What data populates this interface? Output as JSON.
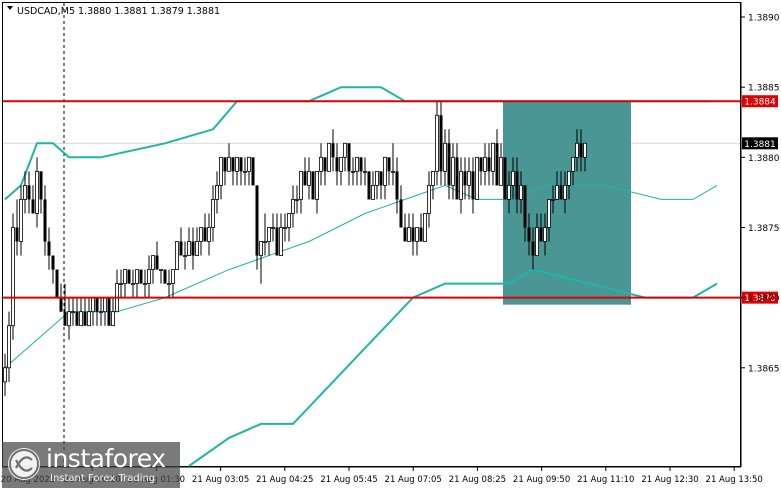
{
  "header": {
    "symbol_label": "USDCAD,M5  1.3880 1.3881 1.3879 1.3881"
  },
  "watermark": {
    "brand": "instaforex",
    "subtitle": "Instant Forex Trading"
  },
  "colors": {
    "background": "#ffffff",
    "candle": "#000000",
    "bollinger": "#1fb5a8",
    "level_line": "#e00000",
    "level_label_bg": "#e00000",
    "highlight_box": "#4a9694",
    "grid": "#d9d9d9"
  },
  "chart_data": {
    "type": "candlestick",
    "ylim": [
      1.3858,
      1.3891
    ],
    "y_ticks": [
      "1.3890",
      "1.3885",
      "1.3880",
      "1.3875",
      "1.3870",
      "1.3865"
    ],
    "x_tick_labels": [
      "20 Aug 2022",
      "21 Aug 00:10",
      "21 Aug 01:30",
      "21 Aug 03:05",
      "21 Aug 04:25",
      "21 Aug 05:45",
      "21 Aug 07:05",
      "21 Aug 08:25",
      "21 Aug 09:50",
      "21 Aug 11:10",
      "21 Aug 12:30",
      "21 Aug 13:50"
    ],
    "price_levels": [
      {
        "label": "1.3884",
        "value": 1.3884
      },
      {
        "label": "1.3870",
        "value": 1.387
      }
    ],
    "current_price": {
      "label": "1.3881",
      "value": 1.3881
    },
    "highlight_zone": {
      "from_bar": 125,
      "to_bar": 156,
      "top": 1.3884,
      "bottom": 1.38695
    },
    "session_separator_bar": 15,
    "candles": [
      [
        1.3864,
        1.3866,
        1.3863,
        1.3865
      ],
      [
        1.3865,
        1.3869,
        1.3864,
        1.3868
      ],
      [
        1.3868,
        1.3876,
        1.3867,
        1.3875
      ],
      [
        1.3875,
        1.3877,
        1.3873,
        1.3874
      ],
      [
        1.3874,
        1.3878,
        1.3873,
        1.3877
      ],
      [
        1.3877,
        1.3879,
        1.3876,
        1.3878
      ],
      [
        1.3878,
        1.3879,
        1.3876,
        1.3877
      ],
      [
        1.3877,
        1.3878,
        1.3876,
        1.3876
      ],
      [
        1.3876,
        1.388,
        1.3875,
        1.3879
      ],
      [
        1.3879,
        1.3879,
        1.3876,
        1.3877
      ],
      [
        1.3877,
        1.3878,
        1.3873,
        1.3874
      ],
      [
        1.3874,
        1.3875,
        1.3872,
        1.3873
      ],
      [
        1.3873,
        1.3873,
        1.3871,
        1.3872
      ],
      [
        1.3872,
        1.3872,
        1.387,
        1.387
      ],
      [
        1.387,
        1.3871,
        1.3869,
        1.3869
      ],
      [
        1.3869,
        1.3871,
        1.3868,
        1.3868
      ],
      [
        1.3868,
        1.387,
        1.3867,
        1.3869
      ],
      [
        1.3869,
        1.387,
        1.3868,
        1.3869
      ],
      [
        1.3869,
        1.387,
        1.3868,
        1.3868
      ],
      [
        1.3868,
        1.387,
        1.3868,
        1.3869
      ],
      [
        1.3869,
        1.387,
        1.3868,
        1.3868
      ],
      [
        1.3868,
        1.387,
        1.3868,
        1.3869
      ],
      [
        1.3869,
        1.387,
        1.3868,
        1.387
      ],
      [
        1.387,
        1.387,
        1.3868,
        1.3869
      ],
      [
        1.3869,
        1.387,
        1.3868,
        1.3869
      ],
      [
        1.3869,
        1.387,
        1.3868,
        1.387
      ],
      [
        1.387,
        1.387,
        1.3868,
        1.3868
      ],
      [
        1.3868,
        1.387,
        1.3868,
        1.3869
      ],
      [
        1.3869,
        1.3872,
        1.3869,
        1.3871
      ],
      [
        1.3871,
        1.3872,
        1.387,
        1.3871
      ],
      [
        1.3871,
        1.3872,
        1.387,
        1.3872
      ],
      [
        1.3872,
        1.3872,
        1.3871,
        1.3871
      ],
      [
        1.3871,
        1.3872,
        1.387,
        1.3871
      ],
      [
        1.3871,
        1.3872,
        1.387,
        1.3872
      ],
      [
        1.3872,
        1.3872,
        1.3871,
        1.3871
      ],
      [
        1.3871,
        1.3872,
        1.387,
        1.3871
      ],
      [
        1.3871,
        1.3873,
        1.387,
        1.3872
      ],
      [
        1.3872,
        1.3873,
        1.3871,
        1.3873
      ],
      [
        1.3873,
        1.3874,
        1.3872,
        1.3872
      ],
      [
        1.3872,
        1.3872,
        1.3871,
        1.3872
      ],
      [
        1.3872,
        1.3872,
        1.3871,
        1.3871
      ],
      [
        1.3871,
        1.3872,
        1.387,
        1.3871
      ],
      [
        1.3871,
        1.3872,
        1.387,
        1.3872
      ],
      [
        1.3872,
        1.3874,
        1.3872,
        1.3874
      ],
      [
        1.3874,
        1.3875,
        1.3873,
        1.3873
      ],
      [
        1.3873,
        1.3874,
        1.3872,
        1.3873
      ],
      [
        1.3873,
        1.3875,
        1.3873,
        1.3874
      ],
      [
        1.3874,
        1.3875,
        1.3872,
        1.3873
      ],
      [
        1.3873,
        1.3875,
        1.3873,
        1.3874
      ],
      [
        1.3874,
        1.3875,
        1.3873,
        1.3875
      ],
      [
        1.3875,
        1.3876,
        1.3874,
        1.3874
      ],
      [
        1.3874,
        1.3876,
        1.3873,
        1.3875
      ],
      [
        1.3875,
        1.3878,
        1.3874,
        1.3877
      ],
      [
        1.3877,
        1.3879,
        1.3876,
        1.3878
      ],
      [
        1.3878,
        1.388,
        1.3877,
        1.388
      ],
      [
        1.388,
        1.388,
        1.3878,
        1.3879
      ],
      [
        1.3879,
        1.3881,
        1.3879,
        1.388
      ],
      [
        1.388,
        1.388,
        1.3878,
        1.3879
      ],
      [
        1.3879,
        1.388,
        1.3878,
        1.388
      ],
      [
        1.388,
        1.388,
        1.3878,
        1.3879
      ],
      [
        1.3879,
        1.388,
        1.3878,
        1.3879
      ],
      [
        1.3879,
        1.388,
        1.3878,
        1.388
      ],
      [
        1.388,
        1.388,
        1.3878,
        1.3878
      ],
      [
        1.3878,
        1.3878,
        1.3872,
        1.3873
      ],
      [
        1.3873,
        1.3874,
        1.3871,
        1.3874
      ],
      [
        1.3874,
        1.3876,
        1.3873,
        1.3874
      ],
      [
        1.3874,
        1.3875,
        1.3873,
        1.3875
      ],
      [
        1.3875,
        1.3876,
        1.3874,
        1.3875
      ],
      [
        1.3875,
        1.3876,
        1.3873,
        1.3873
      ],
      [
        1.3873,
        1.3876,
        1.3873,
        1.3875
      ],
      [
        1.3875,
        1.3876,
        1.3874,
        1.3875
      ],
      [
        1.3875,
        1.3876,
        1.3874,
        1.3876
      ],
      [
        1.3876,
        1.3878,
        1.3875,
        1.3877
      ],
      [
        1.3877,
        1.3878,
        1.3876,
        1.3877
      ],
      [
        1.3877,
        1.3879,
        1.3876,
        1.3879
      ],
      [
        1.3879,
        1.388,
        1.3878,
        1.3878
      ],
      [
        1.3878,
        1.388,
        1.3877,
        1.3879
      ],
      [
        1.3879,
        1.3879,
        1.3877,
        1.3877
      ],
      [
        1.3877,
        1.3879,
        1.3876,
        1.3879
      ],
      [
        1.3879,
        1.3881,
        1.3878,
        1.388
      ],
      [
        1.388,
        1.388,
        1.3878,
        1.3879
      ],
      [
        1.3879,
        1.3881,
        1.3879,
        1.3881
      ],
      [
        1.3881,
        1.3882,
        1.3879,
        1.388
      ],
      [
        1.388,
        1.3881,
        1.3878,
        1.3879
      ],
      [
        1.3879,
        1.388,
        1.3878,
        1.388
      ],
      [
        1.388,
        1.3881,
        1.3879,
        1.3881
      ],
      [
        1.3881,
        1.3881,
        1.3878,
        1.3879
      ],
      [
        1.3879,
        1.388,
        1.3878,
        1.3879
      ],
      [
        1.3879,
        1.388,
        1.3878,
        1.388
      ],
      [
        1.388,
        1.388,
        1.3878,
        1.3879
      ],
      [
        1.3879,
        1.388,
        1.3878,
        1.3879
      ],
      [
        1.3879,
        1.3879,
        1.3877,
        1.3877
      ],
      [
        1.3877,
        1.3879,
        1.3877,
        1.3878
      ],
      [
        1.3878,
        1.3879,
        1.3877,
        1.3879
      ],
      [
        1.3879,
        1.3879,
        1.3877,
        1.3878
      ],
      [
        1.3878,
        1.388,
        1.3877,
        1.388
      ],
      [
        1.388,
        1.388,
        1.3878,
        1.3879
      ],
      [
        1.3879,
        1.3881,
        1.3878,
        1.3879
      ],
      [
        1.3879,
        1.388,
        1.3876,
        1.3877
      ],
      [
        1.3877,
        1.3878,
        1.3875,
        1.3875
      ],
      [
        1.3875,
        1.3876,
        1.3874,
        1.3874
      ],
      [
        1.3874,
        1.3876,
        1.3874,
        1.3875
      ],
      [
        1.3875,
        1.3876,
        1.3873,
        1.3874
      ],
      [
        1.3874,
        1.3875,
        1.3873,
        1.3875
      ],
      [
        1.3875,
        1.3876,
        1.3874,
        1.3874
      ],
      [
        1.3874,
        1.3876,
        1.3874,
        1.3876
      ],
      [
        1.3876,
        1.3879,
        1.3875,
        1.3878
      ],
      [
        1.3878,
        1.3879,
        1.3877,
        1.3879
      ],
      [
        1.3879,
        1.3884,
        1.3878,
        1.3883
      ],
      [
        1.3883,
        1.3884,
        1.3878,
        1.3879
      ],
      [
        1.3879,
        1.3882,
        1.3878,
        1.3881
      ],
      [
        1.3881,
        1.3882,
        1.3877,
        1.3878
      ],
      [
        1.3878,
        1.3881,
        1.3877,
        1.388
      ],
      [
        1.388,
        1.3881,
        1.3877,
        1.3877
      ],
      [
        1.3877,
        1.388,
        1.3876,
        1.3879
      ],
      [
        1.3879,
        1.388,
        1.3877,
        1.3878
      ],
      [
        1.3878,
        1.388,
        1.3877,
        1.3879
      ],
      [
        1.3879,
        1.388,
        1.3876,
        1.3877
      ],
      [
        1.3877,
        1.388,
        1.3877,
        1.388
      ],
      [
        1.388,
        1.388,
        1.3878,
        1.3879
      ],
      [
        1.3879,
        1.3881,
        1.3878,
        1.388
      ],
      [
        1.388,
        1.3881,
        1.3878,
        1.3879
      ],
      [
        1.3879,
        1.3881,
        1.3878,
        1.3881
      ],
      [
        1.3881,
        1.3882,
        1.3878,
        1.3878
      ],
      [
        1.3878,
        1.3881,
        1.3878,
        1.388
      ],
      [
        1.388,
        1.388,
        1.3877,
        1.3877
      ],
      [
        1.3877,
        1.3879,
        1.3876,
        1.3878
      ],
      [
        1.3878,
        1.388,
        1.3877,
        1.3879
      ],
      [
        1.3879,
        1.388,
        1.3876,
        1.3877
      ],
      [
        1.3877,
        1.3879,
        1.3876,
        1.3878
      ],
      [
        1.3878,
        1.3878,
        1.3874,
        1.3875
      ],
      [
        1.3875,
        1.3876,
        1.3873,
        1.3874
      ],
      [
        1.3874,
        1.3875,
        1.3872,
        1.3873
      ],
      [
        1.3873,
        1.3876,
        1.3873,
        1.3875
      ],
      [
        1.3875,
        1.3876,
        1.3874,
        1.3874
      ],
      [
        1.3874,
        1.3876,
        1.3873,
        1.3875
      ],
      [
        1.3875,
        1.3877,
        1.3874,
        1.3877
      ],
      [
        1.3877,
        1.3878,
        1.3876,
        1.3877
      ],
      [
        1.3877,
        1.3879,
        1.3877,
        1.3878
      ],
      [
        1.3878,
        1.3879,
        1.3877,
        1.3877
      ],
      [
        1.3877,
        1.3879,
        1.3876,
        1.3878
      ],
      [
        1.3878,
        1.3879,
        1.3877,
        1.3879
      ],
      [
        1.3879,
        1.388,
        1.3878,
        1.388
      ],
      [
        1.388,
        1.3882,
        1.3879,
        1.3881
      ],
      [
        1.3881,
        1.3882,
        1.3879,
        1.388
      ],
      [
        1.388,
        1.3881,
        1.3879,
        1.3881
      ]
    ],
    "bb_upper": [
      [
        0,
        1.3877
      ],
      [
        4,
        1.3878
      ],
      [
        8,
        1.3881
      ],
      [
        12,
        1.3881
      ],
      [
        16,
        1.388
      ],
      [
        24,
        1.388
      ],
      [
        40,
        1.3881
      ],
      [
        52,
        1.3882
      ],
      [
        58,
        1.3884
      ],
      [
        66,
        1.3884
      ],
      [
        76,
        1.3884
      ],
      [
        84,
        1.3885
      ],
      [
        88,
        1.3885
      ],
      [
        94,
        1.3885
      ],
      [
        100,
        1.3884
      ],
      [
        112,
        1.3884
      ],
      [
        124,
        1.3884
      ],
      [
        134,
        1.3884
      ],
      [
        146,
        1.3884
      ],
      [
        160,
        1.3884
      ],
      [
        166,
        1.3884
      ],
      [
        176,
        1.3884
      ]
    ],
    "bb_middle": [
      [
        0,
        1.3865
      ],
      [
        8,
        1.3867
      ],
      [
        16,
        1.3869
      ],
      [
        28,
        1.3869
      ],
      [
        40,
        1.387
      ],
      [
        56,
        1.3872
      ],
      [
        66,
        1.3873
      ],
      [
        76,
        1.3874
      ],
      [
        90,
        1.3876
      ],
      [
        100,
        1.3877
      ],
      [
        110,
        1.3878
      ],
      [
        118,
        1.3877
      ],
      [
        126,
        1.3877
      ],
      [
        136,
        1.3878
      ],
      [
        150,
        1.3878
      ],
      [
        164,
        1.3877
      ],
      [
        172,
        1.3877
      ],
      [
        178,
        1.3878
      ]
    ],
    "bb_lower": [
      [
        46,
        1.3858
      ],
      [
        56,
        1.386
      ],
      [
        64,
        1.3861
      ],
      [
        72,
        1.3861
      ],
      [
        82,
        1.3864
      ],
      [
        92,
        1.3867
      ],
      [
        102,
        1.387
      ],
      [
        110,
        1.3871
      ],
      [
        118,
        1.3871
      ],
      [
        126,
        1.3871
      ],
      [
        132,
        1.3872
      ],
      [
        146,
        1.3871
      ],
      [
        160,
        1.387
      ],
      [
        172,
        1.387
      ],
      [
        178,
        1.3871
      ]
    ]
  }
}
